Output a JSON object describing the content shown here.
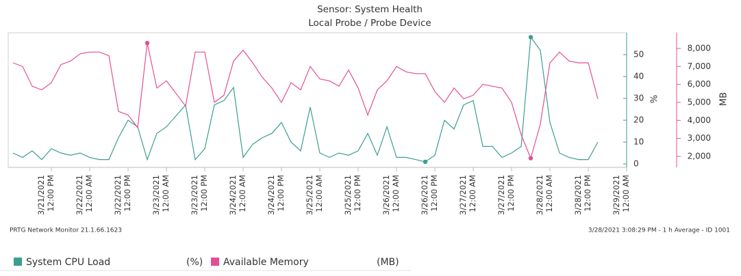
{
  "chart_data": {
    "type": "line",
    "title": "Sensor: System Health",
    "subtitle": "Local Probe / Probe Device",
    "y_label": "%",
    "y2_label": "MB",
    "footer_left": "PRTG Network Monitor 21.1.66.1623",
    "footer_right": "3/28/2021 3:08:29 PM - 1 h Average - ID 1001",
    "x": [
      "3/21/2021 12:00 AM",
      "3/21/2021 3:00 AM",
      "3/21/2021 6:00 AM",
      "3/21/2021 9:00 AM",
      "3/21/2021 12:00 PM",
      "3/21/2021 3:00 PM",
      "3/21/2021 6:00 PM",
      "3/21/2021 9:00 PM",
      "3/22/2021 12:00 AM",
      "3/22/2021 3:00 AM",
      "3/22/2021 6:00 AM",
      "3/22/2021 9:00 AM",
      "3/22/2021 12:00 PM",
      "3/22/2021 3:00 PM",
      "3/22/2021 6:00 PM",
      "3/22/2021 9:00 PM",
      "3/23/2021 12:00 AM",
      "3/23/2021 3:00 AM",
      "3/23/2021 6:00 AM",
      "3/23/2021 9:00 AM",
      "3/23/2021 12:00 PM",
      "3/23/2021 3:00 PM",
      "3/23/2021 6:00 PM",
      "3/23/2021 9:00 PM",
      "3/24/2021 12:00 AM",
      "3/24/2021 3:00 AM",
      "3/24/2021 6:00 AM",
      "3/24/2021 9:00 AM",
      "3/24/2021 12:00 PM",
      "3/24/2021 3:00 PM",
      "3/24/2021 6:00 PM",
      "3/24/2021 9:00 PM",
      "3/25/2021 12:00 AM",
      "3/25/2021 3:00 AM",
      "3/25/2021 6:00 AM",
      "3/25/2021 9:00 AM",
      "3/25/2021 12:00 PM",
      "3/25/2021 3:00 PM",
      "3/25/2021 6:00 PM",
      "3/25/2021 9:00 PM",
      "3/26/2021 12:00 AM",
      "3/26/2021 3:00 AM",
      "3/26/2021 6:00 AM",
      "3/26/2021 9:00 AM",
      "3/26/2021 12:00 PM",
      "3/26/2021 3:00 PM",
      "3/26/2021 6:00 PM",
      "3/26/2021 9:00 PM",
      "3/27/2021 12:00 AM",
      "3/27/2021 3:00 AM",
      "3/27/2021 6:00 AM",
      "3/27/2021 9:00 AM",
      "3/27/2021 12:00 PM",
      "3/27/2021 3:00 PM",
      "3/27/2021 6:00 PM",
      "3/27/2021 9:00 PM",
      "3/28/2021 12:00 AM",
      "3/28/2021 3:00 AM",
      "3/28/2021 6:00 AM",
      "3/28/2021 9:00 AM",
      "3/28/2021 12:00 PM",
      "3/28/2021 3:00 PM"
    ],
    "series": [
      {
        "name": "System CPU Load",
        "unit": "(%)",
        "color": "#3a9e90",
        "values": [
          5,
          3,
          6,
          2,
          7,
          5,
          4,
          5,
          3,
          2,
          2,
          12,
          20,
          17,
          2,
          14,
          17,
          22,
          27,
          2,
          7,
          27,
          29,
          35,
          3,
          9,
          12,
          14,
          19,
          10,
          6,
          26,
          5,
          3,
          5,
          4,
          6,
          14,
          4,
          17,
          3,
          3,
          2,
          1,
          4,
          20,
          16,
          27,
          29,
          8,
          8,
          3,
          5,
          8,
          58,
          52,
          19,
          5,
          3,
          2,
          2,
          10
        ]
      },
      {
        "name": "Available Memory",
        "unit": "(MB)",
        "color": "#e24f94",
        "axis": "y2",
        "values": [
          7200,
          7000,
          5900,
          5700,
          6100,
          7100,
          7300,
          7700,
          7800,
          7800,
          7600,
          4500,
          4300,
          3600,
          8300,
          5800,
          6200,
          5500,
          4800,
          7800,
          7800,
          5000,
          5400,
          7300,
          7900,
          7200,
          6400,
          5800,
          5000,
          6100,
          5700,
          7000,
          6300,
          6200,
          5900,
          6800,
          5800,
          4300,
          5700,
          6200,
          7000,
          6700,
          6600,
          6600,
          5600,
          5000,
          5800,
          5200,
          5400,
          6000,
          5900,
          5800,
          5000,
          3200,
          1900,
          3800,
          7200,
          7800,
          7300,
          7200,
          7200,
          5200
        ]
      }
    ],
    "xlim": [
      "3/20/2021 10:30 PM",
      "3/29/2021 12:00 AM"
    ],
    "xticks": [
      "3/21/2021 12:00 PM",
      "3/22/2021 12:00 AM",
      "3/22/2021 12:00 PM",
      "3/23/2021 12:00 AM",
      "3/23/2021 12:00 PM",
      "3/24/2021 12:00 AM",
      "3/24/2021 12:00 PM",
      "3/25/2021 12:00 AM",
      "3/25/2021 12:00 PM",
      "3/26/2021 12:00 AM",
      "3/26/2021 12:00 PM",
      "3/27/2021 12:00 AM",
      "3/27/2021 12:00 PM",
      "3/28/2021 12:00 AM",
      "3/28/2021 12:00 PM",
      "3/29/2021 12:00 AM"
    ],
    "ylim": [
      0,
      60
    ],
    "yticks": [
      0,
      10,
      20,
      30,
      40,
      50
    ],
    "y2lim": [
      1580,
      8870
    ],
    "y2ticks": [
      {
        "value": 2000,
        "label": "2,000"
      },
      {
        "value": 3000,
        "label": "3,000"
      },
      {
        "value": 4000,
        "label": "4,000"
      },
      {
        "value": 5000,
        "label": "5,000"
      },
      {
        "value": 6000,
        "label": "6,000"
      },
      {
        "value": 7000,
        "label": "7,000"
      },
      {
        "value": 8000,
        "label": "8,000"
      }
    ],
    "grid": false,
    "extreme_markers": true
  }
}
